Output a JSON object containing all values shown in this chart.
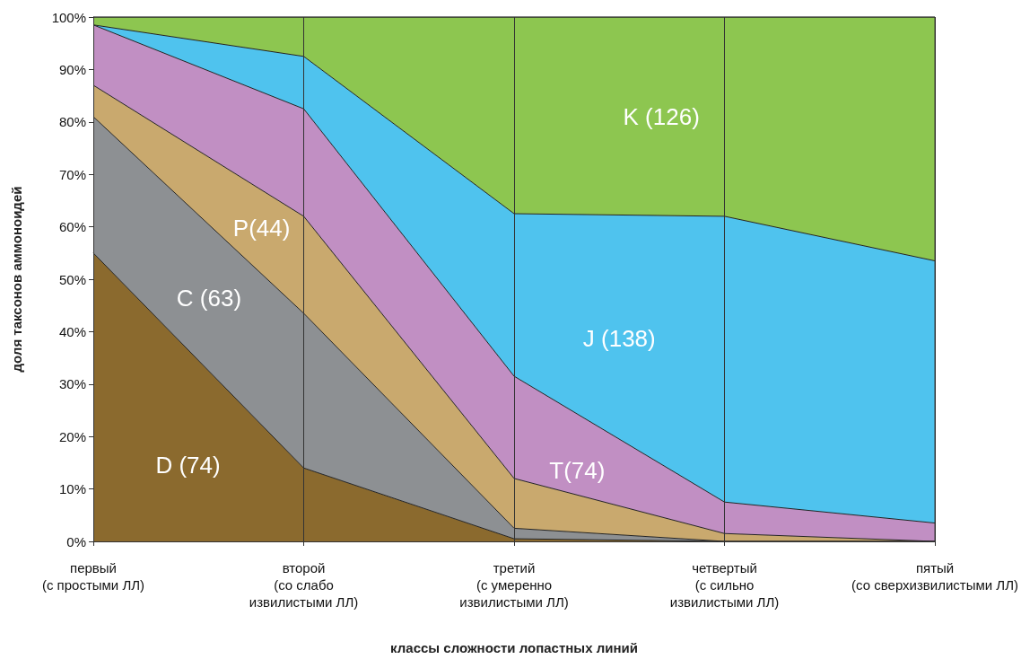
{
  "chart_data": {
    "type": "area",
    "stacked": true,
    "xlabel": "классы сложности лопастных линий",
    "ylabel": "доля таксонов аммоноидей",
    "categories": [
      "первый\n(с простыми ЛЛ)",
      "второй\n(со слабо\nизвилистыми ЛЛ)",
      "третий\n(с умеренно\nизвилистыми ЛЛ)",
      "четвертый\n(с сильно\nизвилистыми ЛЛ)",
      "пятый\n(со сверхизвилистыми ЛЛ)"
    ],
    "series": [
      {
        "name": "D (74)",
        "color": "#8b6a2e",
        "values": [
          55,
          14,
          0.5,
          0,
          0
        ]
      },
      {
        "name": "C (63)",
        "color": "#8d9093",
        "values": [
          26,
          29.5,
          2,
          0,
          0
        ]
      },
      {
        "name": "P(44)",
        "color": "#c9a96e",
        "values": [
          6,
          18.5,
          9.5,
          1.5,
          0
        ]
      },
      {
        "name": "T(74)",
        "color": "#c18fc3",
        "values": [
          11.5,
          20.5,
          19.5,
          6,
          3.5
        ]
      },
      {
        "name": "J (138)",
        "color": "#4fc3ee",
        "values": [
          0,
          10,
          31,
          54.5,
          50
        ]
      },
      {
        "name": "K (126)",
        "color": "#8dc650",
        "values": [
          1.5,
          7.5,
          37.5,
          38,
          46.5
        ]
      }
    ],
    "ylim": [
      0,
      100
    ],
    "yticks": [
      {
        "value": 0,
        "label": "0%"
      },
      {
        "value": 10,
        "label": "10%"
      },
      {
        "value": 20,
        "label": "20%"
      },
      {
        "value": 30,
        "label": "30%"
      },
      {
        "value": 40,
        "label": "40%"
      },
      {
        "value": 50,
        "label": "50%"
      },
      {
        "value": 60,
        "label": "60%"
      },
      {
        "value": 70,
        "label": "70%"
      },
      {
        "value": 80,
        "label": "80%"
      },
      {
        "value": 90,
        "label": "90%"
      },
      {
        "value": 100,
        "label": "100%"
      }
    ],
    "grid": "x",
    "legend": false,
    "line_style": "solid",
    "marker": "none"
  }
}
